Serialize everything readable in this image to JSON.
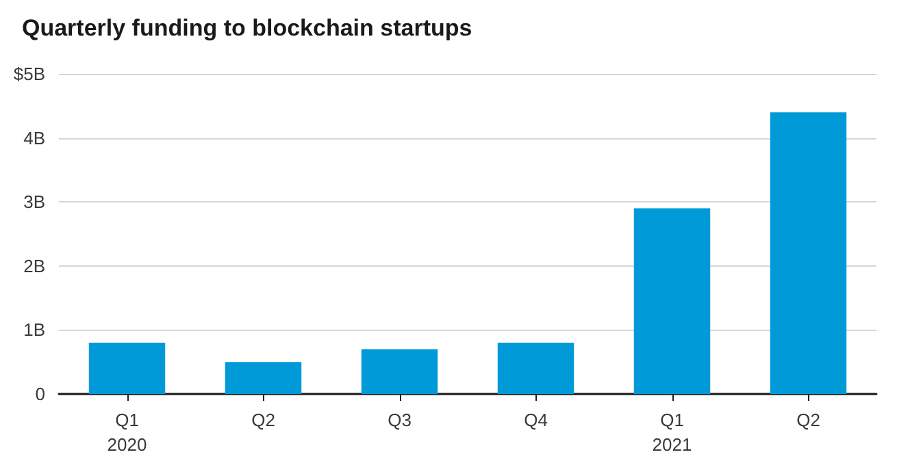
{
  "chart_data": {
    "type": "bar",
    "title": "Quarterly funding to blockchain startups",
    "categories": [
      "Q1\n2020",
      "Q2",
      "Q3",
      "Q4",
      "Q1\n2021",
      "Q2"
    ],
    "values": [
      0.8,
      0.5,
      0.7,
      0.8,
      2.9,
      4.4
    ],
    "color": "#009ad9",
    "ylim": [
      0,
      5
    ],
    "yticks": [
      0,
      {
        "value": 1,
        "label": "1B"
      },
      {
        "value": 2,
        "label": "2B"
      },
      {
        "value": 3,
        "label": "3B"
      },
      {
        "value": 4,
        "label": "4B"
      },
      {
        "value": 5,
        "label": "$5B"
      }
    ],
    "grid": "y"
  }
}
